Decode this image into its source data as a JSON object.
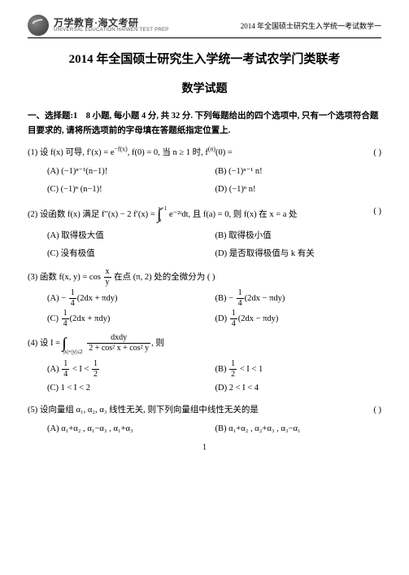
{
  "header": {
    "logo_cn": "万学教育·海文考研",
    "logo_en": "UNIVERSAL EDUCATION    HAIWEN TEST PREP",
    "right": "2014 年全国硕士研究生入学统一考试数学一"
  },
  "titles": {
    "t1": "2014 年全国硕士研究生入学统一考试农学门类联考",
    "t2": "数学试题"
  },
  "section1": "一、选择题:1 8 小题, 每小题 4 分, 共 32 分. 下列每题给出的四个选项中, 只有一个选项符合题目要求的, 请将所选项前的字母填在答题纸指定位置上.",
  "q1": {
    "stem_a": "(1) 设 f(x) 可导,  f′(x) = e",
    "stem_exp": "−f(x)",
    "stem_b": ",  f(0) = 0,  当 n ≥ 1 时,  f",
    "stem_exp2": "(n)",
    "stem_c": "(0) =",
    "paren": "(      )",
    "A": "(−1)ⁿ⁻¹(n−1)!",
    "B": "(−1)ⁿ⁻¹ n!",
    "C": "(−1)ⁿ (n−1)!",
    "D": "(−1)ⁿ n!"
  },
  "q2": {
    "stem_a": "(2) 设函数 f(x) 满足 f″(x) − 2 f′(x) = ",
    "int_lo": "a",
    "int_hi": "x+1",
    "stem_b": " e⁻²ᵗdt, 且 f(a) = 0, 则 f(x) 在 x = a 处",
    "paren": "(      )",
    "A": "(A) 取得极大值",
    "B": "(B) 取得极小值",
    "C": "(C) 没有极值",
    "D": "(D) 是否取得极值与 k 有关"
  },
  "q3": {
    "stem_a": "(3) 函数 f(x, y) = cos ",
    "frac_num": "x",
    "frac_den": "y",
    "stem_b": " 在点 (π, 2) 处的全微分为 (      )",
    "Aa": "(A) − ",
    "Ab": "(2dx + πdy)",
    "Ba": "(B)  − ",
    "Bb": "(2dx − πdy)",
    "Ca": "(C)  ",
    "Cb": "(2dx + πdy)",
    "Da": "(D)  ",
    "Db": "(2dx − πdy)",
    "f_num": "1",
    "f_den": "4"
  },
  "q4": {
    "stem_a": "(4) 设 I = ",
    "region": "|x|+|y|≤2",
    "frac_num": "dxdy",
    "frac_den": "2 + cos² x + cos² y",
    "stem_b": ", 则",
    "A_a": "(A) ",
    "A_mid": " < I < ",
    "B_a": "(B) ",
    "B_mid": " < I < 1",
    "C": "(C) 1 < I < 2",
    "D": "(D) 2 < I < 4",
    "q14": "1",
    "q44": "4",
    "q12": "1",
    "q22": "2"
  },
  "q5": {
    "stem": "(5)  设向量组 α₁, α₂, α₃ 线性无关, 则下列向量组中线性无关的是",
    "paren": "(      )",
    "A": "(A)  α₁+α₂ ,  α₁−α₃ ,  α₁+α₃",
    "B": "(B)  α₁+α₂ ,  α₂+α₃ ,  α₃−α₁"
  },
  "pagenum": "1"
}
